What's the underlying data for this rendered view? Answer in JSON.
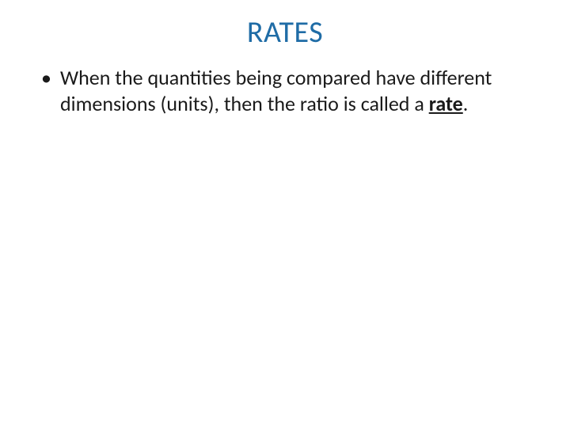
{
  "slide": {
    "title": "RATES",
    "title_color": "#1f6ca6",
    "body_color": "#1a1a1a",
    "background_color": "#ffffff",
    "title_fontsize": 38,
    "body_fontsize": 26,
    "bullets": [
      {
        "text_prefix": "When the quantities being compared have different dimensions (units), then the ratio is called a ",
        "emphasized": "rate",
        "text_suffix": "."
      }
    ]
  }
}
